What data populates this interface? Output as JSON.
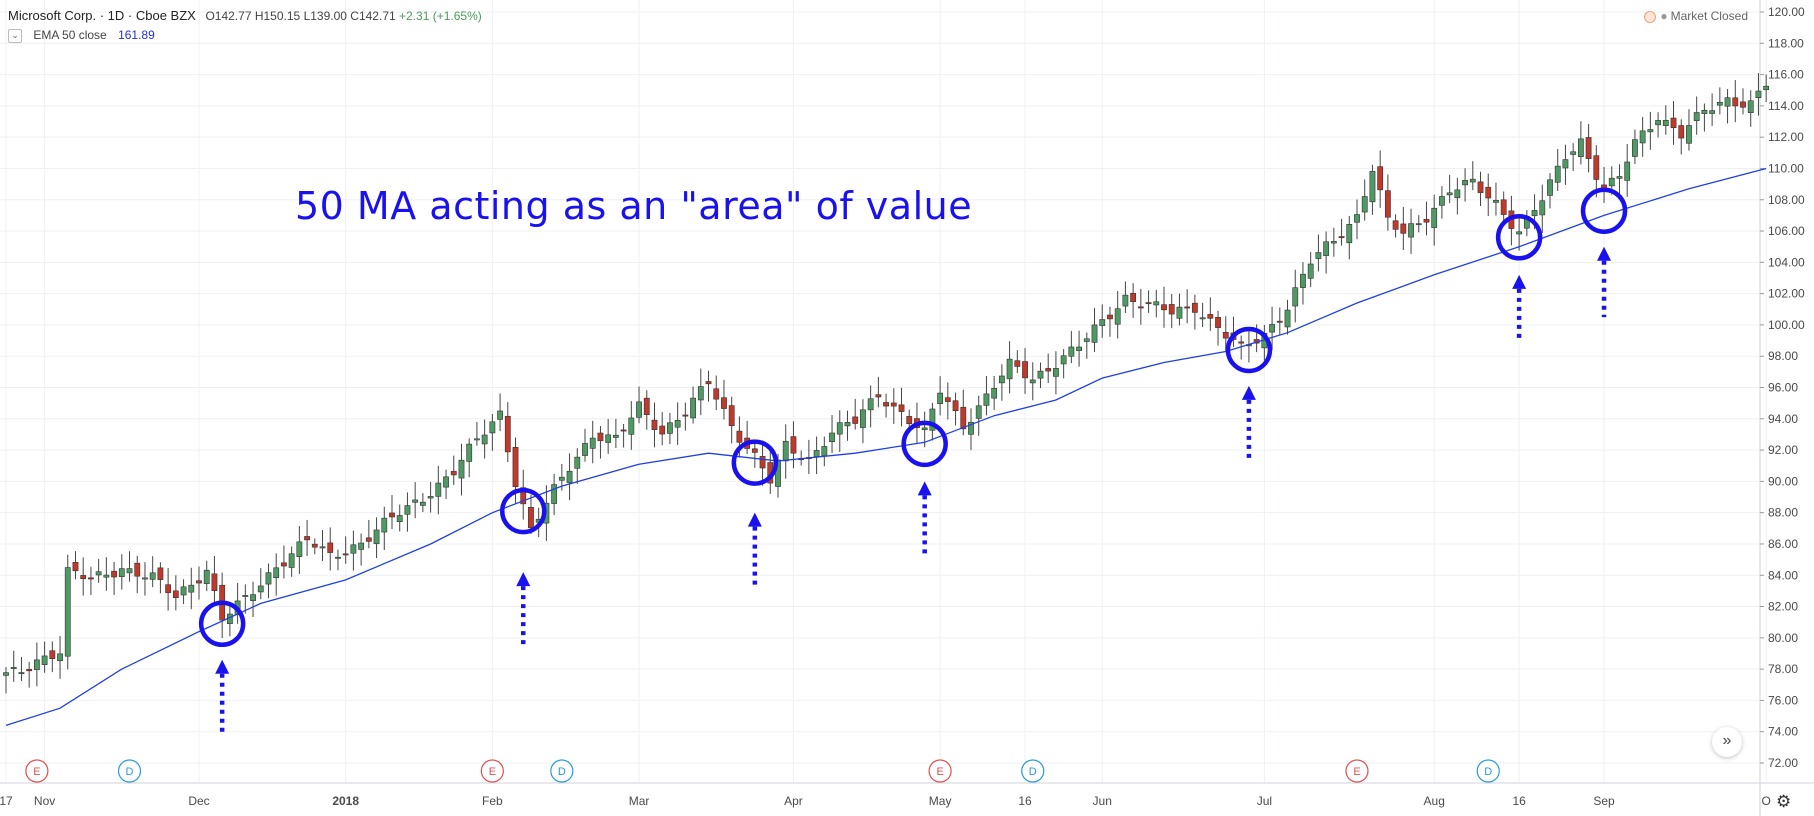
{
  "header": {
    "symbol": "Microsoft Corp. · 1D · Cboe BZX",
    "open": "O142.77",
    "high": "H150.15",
    "low": "L139.00",
    "close": "C142.71",
    "change": "+2.31 (+1.65%)",
    "status": "Market Closed"
  },
  "indicator": {
    "label": "EMA 50 close",
    "value": "161.89",
    "collapse_icon": "chevron-down-icon"
  },
  "annotation": "50 MA acting as an \"area\" of value",
  "colors": {
    "up": "#4f9a62",
    "down": "#c0392b",
    "ema": "#2040e0",
    "marker": "#1a12ee"
  },
  "chart_data": {
    "type": "candlestick",
    "yrange": [
      72,
      120
    ],
    "yticks": [
      "72.00",
      "74.00",
      "76.00",
      "78.00",
      "80.00",
      "82.00",
      "84.00",
      "86.00",
      "88.00",
      "90.00",
      "92.00",
      "94.00",
      "96.00",
      "98.00",
      "100.00",
      "102.00",
      "104.00",
      "106.00",
      "108.00",
      "110.00",
      "112.00",
      "114.00",
      "116.00",
      "118.00",
      "120.00"
    ],
    "xticks": [
      {
        "label": "17",
        "x": 0
      },
      {
        "label": "Nov",
        "x": 5
      },
      {
        "label": "Dec",
        "x": 25
      },
      {
        "label": "2018",
        "x": 44,
        "bold": true
      },
      {
        "label": "Feb",
        "x": 63
      },
      {
        "label": "Mar",
        "x": 82
      },
      {
        "label": "Apr",
        "x": 102
      },
      {
        "label": "May",
        "x": 121
      },
      {
        "label": "16",
        "x": 132
      },
      {
        "label": "Jun",
        "x": 142
      },
      {
        "label": "Jul",
        "x": 163
      },
      {
        "label": "Aug",
        "x": 185
      },
      {
        "label": "16",
        "x": 196
      },
      {
        "label": "Sep",
        "x": 207
      },
      {
        "label": "O",
        "x": 228
      }
    ],
    "events": [
      {
        "type": "E",
        "x": 4
      },
      {
        "type": "D",
        "x": 16
      },
      {
        "type": "E",
        "x": 63
      },
      {
        "type": "D",
        "x": 72
      },
      {
        "type": "E",
        "x": 121
      },
      {
        "type": "D",
        "x": 133
      },
      {
        "type": "E",
        "x": 175
      },
      {
        "type": "D",
        "x": 192
      }
    ],
    "circles": [
      {
        "x": 28,
        "y": 80.9
      },
      {
        "x": 67,
        "y": 88.1
      },
      {
        "x": 97,
        "y": 91.2
      },
      {
        "x": 119,
        "y": 92.4
      },
      {
        "x": 161,
        "y": 98.4
      },
      {
        "x": 196,
        "y": 105.6
      },
      {
        "x": 207,
        "y": 107.3
      }
    ],
    "arrows": [
      {
        "x": 28,
        "tip": 78.6,
        "tail": 73.8
      },
      {
        "x": 67,
        "tip": 84.2,
        "tail": 79.5
      },
      {
        "x": 97,
        "tip": 88.0,
        "tail": 83.1
      },
      {
        "x": 119,
        "tip": 90.0,
        "tail": 85.3
      },
      {
        "x": 161,
        "tip": 96.1,
        "tail": 91.4
      },
      {
        "x": 196,
        "tip": 103.2,
        "tail": 98.9
      },
      {
        "x": 207,
        "tip": 105.0,
        "tail": 100.5
      }
    ],
    "ema_anchors": [
      {
        "x": 0,
        "y": 74.4
      },
      {
        "x": 7,
        "y": 75.5
      },
      {
        "x": 15,
        "y": 78.0
      },
      {
        "x": 25,
        "y": 80.4
      },
      {
        "x": 33,
        "y": 82.2
      },
      {
        "x": 44,
        "y": 83.7
      },
      {
        "x": 55,
        "y": 86.0
      },
      {
        "x": 63,
        "y": 88.0
      },
      {
        "x": 72,
        "y": 89.7
      },
      {
        "x": 82,
        "y": 91.1
      },
      {
        "x": 91,
        "y": 91.8
      },
      {
        "x": 100,
        "y": 91.3
      },
      {
        "x": 110,
        "y": 91.8
      },
      {
        "x": 119,
        "y": 92.5
      },
      {
        "x": 128,
        "y": 94.2
      },
      {
        "x": 136,
        "y": 95.2
      },
      {
        "x": 142,
        "y": 96.6
      },
      {
        "x": 150,
        "y": 97.6
      },
      {
        "x": 158,
        "y": 98.3
      },
      {
        "x": 166,
        "y": 99.5
      },
      {
        "x": 175,
        "y": 101.4
      },
      {
        "x": 185,
        "y": 103.2
      },
      {
        "x": 196,
        "y": 105.0
      },
      {
        "x": 207,
        "y": 107.0
      },
      {
        "x": 218,
        "y": 108.7
      },
      {
        "x": 228,
        "y": 110.0
      }
    ],
    "price_path": [
      {
        "x": 0,
        "y": 77.6
      },
      {
        "x": 2,
        "y": 77.8
      },
      {
        "x": 4,
        "y": 78.6
      },
      {
        "x": 6,
        "y": 79.0
      },
      {
        "x": 7,
        "y": 79.2
      },
      {
        "x": 8,
        "y": 84.2
      },
      {
        "x": 11,
        "y": 83.7
      },
      {
        "x": 15,
        "y": 84.5
      },
      {
        "x": 19,
        "y": 83.8
      },
      {
        "x": 22,
        "y": 82.6
      },
      {
        "x": 26,
        "y": 84.4
      },
      {
        "x": 28,
        "y": 81.2
      },
      {
        "x": 31,
        "y": 82.4
      },
      {
        "x": 35,
        "y": 84.6
      },
      {
        "x": 39,
        "y": 86.2
      },
      {
        "x": 42,
        "y": 85.2
      },
      {
        "x": 46,
        "y": 86.1
      },
      {
        "x": 50,
        "y": 87.6
      },
      {
        "x": 54,
        "y": 89.0
      },
      {
        "x": 58,
        "y": 90.6
      },
      {
        "x": 61,
        "y": 92.6
      },
      {
        "x": 64,
        "y": 94.4
      },
      {
        "x": 66,
        "y": 90.0
      },
      {
        "x": 68,
        "y": 86.8
      },
      {
        "x": 71,
        "y": 89.4
      },
      {
        "x": 73,
        "y": 91.0
      },
      {
        "x": 76,
        "y": 93.0
      },
      {
        "x": 79,
        "y": 92.6
      },
      {
        "x": 82,
        "y": 94.8
      },
      {
        "x": 85,
        "y": 93.2
      },
      {
        "x": 88,
        "y": 94.4
      },
      {
        "x": 91,
        "y": 96.3
      },
      {
        "x": 94,
        "y": 93.6
      },
      {
        "x": 97,
        "y": 91.6
      },
      {
        "x": 99,
        "y": 90.0
      },
      {
        "x": 101,
        "y": 92.2
      },
      {
        "x": 104,
        "y": 91.4
      },
      {
        "x": 107,
        "y": 93.2
      },
      {
        "x": 110,
        "y": 93.8
      },
      {
        "x": 113,
        "y": 95.6
      },
      {
        "x": 116,
        "y": 94.4
      },
      {
        "x": 119,
        "y": 93.0
      },
      {
        "x": 121,
        "y": 95.8
      },
      {
        "x": 124,
        "y": 93.6
      },
      {
        "x": 127,
        "y": 95.4
      },
      {
        "x": 130,
        "y": 97.4
      },
      {
        "x": 133,
        "y": 96.6
      },
      {
        "x": 136,
        "y": 97.6
      },
      {
        "x": 139,
        "y": 98.6
      },
      {
        "x": 142,
        "y": 100.2
      },
      {
        "x": 145,
        "y": 101.8
      },
      {
        "x": 148,
        "y": 101.2
      },
      {
        "x": 151,
        "y": 100.8
      },
      {
        "x": 154,
        "y": 101.2
      },
      {
        "x": 157,
        "y": 99.8
      },
      {
        "x": 160,
        "y": 98.4
      },
      {
        "x": 163,
        "y": 99.4
      },
      {
        "x": 166,
        "y": 101.2
      },
      {
        "x": 169,
        "y": 104.0
      },
      {
        "x": 172,
        "y": 105.4
      },
      {
        "x": 175,
        "y": 107.0
      },
      {
        "x": 177,
        "y": 110.0
      },
      {
        "x": 179,
        "y": 106.6
      },
      {
        "x": 181,
        "y": 105.8
      },
      {
        "x": 184,
        "y": 107.0
      },
      {
        "x": 187,
        "y": 108.6
      },
      {
        "x": 190,
        "y": 109.0
      },
      {
        "x": 193,
        "y": 107.8
      },
      {
        "x": 196,
        "y": 106.0
      },
      {
        "x": 199,
        "y": 108.0
      },
      {
        "x": 202,
        "y": 110.8
      },
      {
        "x": 204,
        "y": 111.8
      },
      {
        "x": 207,
        "y": 108.6
      },
      {
        "x": 209,
        "y": 109.4
      },
      {
        "x": 211,
        "y": 111.6
      },
      {
        "x": 214,
        "y": 113.4
      },
      {
        "x": 217,
        "y": 112.2
      },
      {
        "x": 220,
        "y": 113.6
      },
      {
        "x": 223,
        "y": 114.4
      },
      {
        "x": 226,
        "y": 114.2
      },
      {
        "x": 228,
        "y": 115.4
      }
    ]
  }
}
